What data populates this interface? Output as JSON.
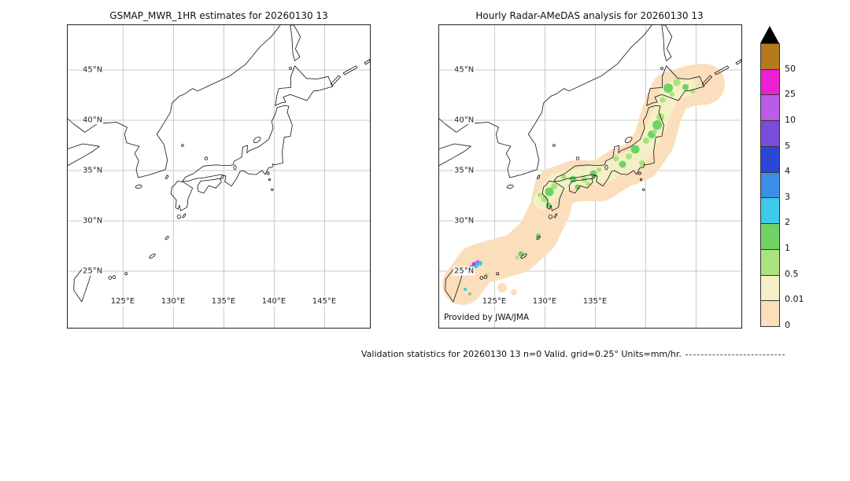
{
  "left_panel": {
    "title": "GSMAP_MWR_1HR estimates for 20260130 13",
    "lat_labels": [
      "45°N",
      "40°N",
      "35°N",
      "30°N",
      "25°N"
    ],
    "lon_labels": [
      "125°E",
      "130°E",
      "135°E",
      "140°E",
      "145°E"
    ]
  },
  "right_panel": {
    "title": "Hourly Radar-AMeDAS analysis for 20260130 13",
    "lat_labels": [
      "45°N",
      "40°N",
      "35°N",
      "30°N",
      "25°N"
    ],
    "lon_labels": [
      "125°E",
      "130°E",
      "135°E"
    ],
    "credit": "Provided by JWA/JMA"
  },
  "colorbar": {
    "tick_labels": [
      "50",
      "25",
      "10",
      "5",
      "4",
      "3",
      "2",
      "1",
      "0.5",
      "0.01",
      "0"
    ],
    "segments": [
      "#b5791e",
      "#ee1fd2",
      "#bb5ce8",
      "#7a4cdc",
      "#2c46d8",
      "#3b8fe8",
      "#3fc9ea",
      "#6fd267",
      "#a9e37d",
      "#f2f0c4",
      "#fbdfbc"
    ],
    "arrow_color": "#000000",
    "units": "mm/hr"
  },
  "footer": {
    "text": "Validation statistics for 20260130 13  n=0 Valid. grid=0.25°  Units=mm/hr."
  },
  "chart_data": {
    "type": "heatmap",
    "title": "GSMaP MWR 1-hour estimates vs Hourly Radar-AMeDAS analysis, 2026-01-30 13 UTC",
    "panels": [
      {
        "title": "GSMAP_MWR_1HR estimates for 20260130 13",
        "lon_range_deg_e": [
          119.5,
          149.5
        ],
        "lat_range_deg_n": [
          19.4,
          49.4
        ],
        "grid_interval_deg": 5,
        "precipitation": "no data shown (blank map, n=0)"
      },
      {
        "title": "Hourly Radar-AMeDAS analysis for 20260130 13",
        "lon_range_deg_e": [
          119.5,
          149.5
        ],
        "lat_range_deg_n": [
          19.4,
          49.4
        ],
        "grid_interval_deg": 5,
        "precipitation": "broad 0-0.5 mm/hr band along the Japan archipelago from the Nansei islands through Kyushu, Honshu and Hokkaido; scattered 0.5-2 mm/hr green cells over land; isolated 2-50 mm/hr cells (cyan/purple/magenta) near 25°N southwest islands"
      }
    ],
    "colorbar_levels_mm_hr": [
      0,
      0.01,
      0.5,
      1,
      2,
      3,
      4,
      5,
      10,
      25,
      50
    ],
    "units": "mm/hr",
    "valid_grid": "0.25°",
    "n": 0,
    "legend_position": "right",
    "grid": true,
    "precip": {
      "bands": [
        {
          "color": "#fbdfbc",
          "width": 52,
          "points": [
            [
              30,
              330
            ],
            [
              48,
              305
            ],
            [
              100,
              290
            ],
            [
              125,
              267
            ],
            [
              141,
              234
            ],
            [
              147,
              207
            ],
            [
              173,
              198
            ],
            [
              205,
              198
            ],
            [
              230,
              182
            ],
            [
              256,
              172
            ],
            [
              273,
              147
            ],
            [
              282,
              115
            ],
            [
              294,
              85
            ],
            [
              320,
              77
            ],
            [
              337,
              75
            ]
          ]
        },
        {
          "color": "#f2f0c4",
          "width": 24,
          "points": [
            [
              132,
              223
            ],
            [
              150,
              200
            ],
            [
              179,
              194
            ],
            [
              211,
              187
            ],
            [
              250,
              170
            ],
            [
              271,
              140
            ],
            [
              283,
              111
            ],
            [
              294,
              84
            ],
            [
              314,
              79
            ]
          ]
        }
      ],
      "spots": [
        [
          291,
          80,
          6,
          "#6fd267"
        ],
        [
          302,
          73,
          4.5,
          "#a9e37d"
        ],
        [
          313,
          79,
          4,
          "#6fd267"
        ],
        [
          322,
          84,
          3,
          "#a9e37d"
        ],
        [
          284,
          95,
          3.5,
          "#a9e37d"
        ],
        [
          296,
          88,
          3,
          "#a9e37d"
        ],
        [
          277,
          127,
          6,
          "#6fd267"
        ],
        [
          281,
          117,
          5,
          "#a9e37d"
        ],
        [
          270,
          139,
          5,
          "#6fd267"
        ],
        [
          263,
          147,
          4,
          "#a9e37d"
        ],
        [
          274,
          135,
          3,
          "#a9e37d"
        ],
        [
          249,
          158,
          5.5,
          "#6fd267"
        ],
        [
          241,
          167,
          4,
          "#a9e37d"
        ],
        [
          233,
          177,
          4.5,
          "#6fd267"
        ],
        [
          225,
          170,
          3.5,
          "#a9e37d"
        ],
        [
          258,
          176,
          4,
          "#a9e37d"
        ],
        [
          196,
          189,
          4.5,
          "#6fd267"
        ],
        [
          184,
          196,
          4,
          "#a9e37d"
        ],
        [
          170,
          196,
          4.5,
          "#6fd267"
        ],
        [
          158,
          193,
          3.5,
          "#a9e37d"
        ],
        [
          203,
          184,
          3,
          "#a9e37d"
        ],
        [
          176,
          206,
          3.5,
          "#6fd267"
        ],
        [
          189,
          202,
          3,
          "#a9e37d"
        ],
        [
          140,
          212,
          5.5,
          "#6fd267"
        ],
        [
          134,
          221,
          4.5,
          "#a9e37d"
        ],
        [
          146,
          205,
          4,
          "#a9e37d"
        ],
        [
          139,
          229,
          3.5,
          "#6fd267"
        ],
        [
          128,
          216,
          3,
          "#a9e37d"
        ],
        [
          126,
          268,
          3,
          "#6fd267"
        ],
        [
          104,
          291,
          3.5,
          "#6fd267"
        ],
        [
          99,
          296,
          2.5,
          "#a9e37d"
        ],
        [
          60,
          318,
          2.5,
          "#a9e37d"
        ],
        [
          80,
          334,
          6,
          "#fbdfbc"
        ],
        [
          95,
          340,
          4,
          "#fbdfbc"
        ],
        [
          46,
          305,
          4.5,
          "#3fc9ea"
        ],
        [
          52,
          303,
          3,
          "#3fc9ea"
        ],
        [
          41,
          308,
          3,
          "#3fc9ea"
        ],
        [
          44,
          304,
          2.4,
          "#ee1fd2"
        ],
        [
          49,
          301,
          2,
          "#bb5ce8"
        ],
        [
          33,
          336,
          2,
          "#3fc9ea"
        ],
        [
          39,
          342,
          2,
          "#6fd267"
        ]
      ]
    }
  }
}
